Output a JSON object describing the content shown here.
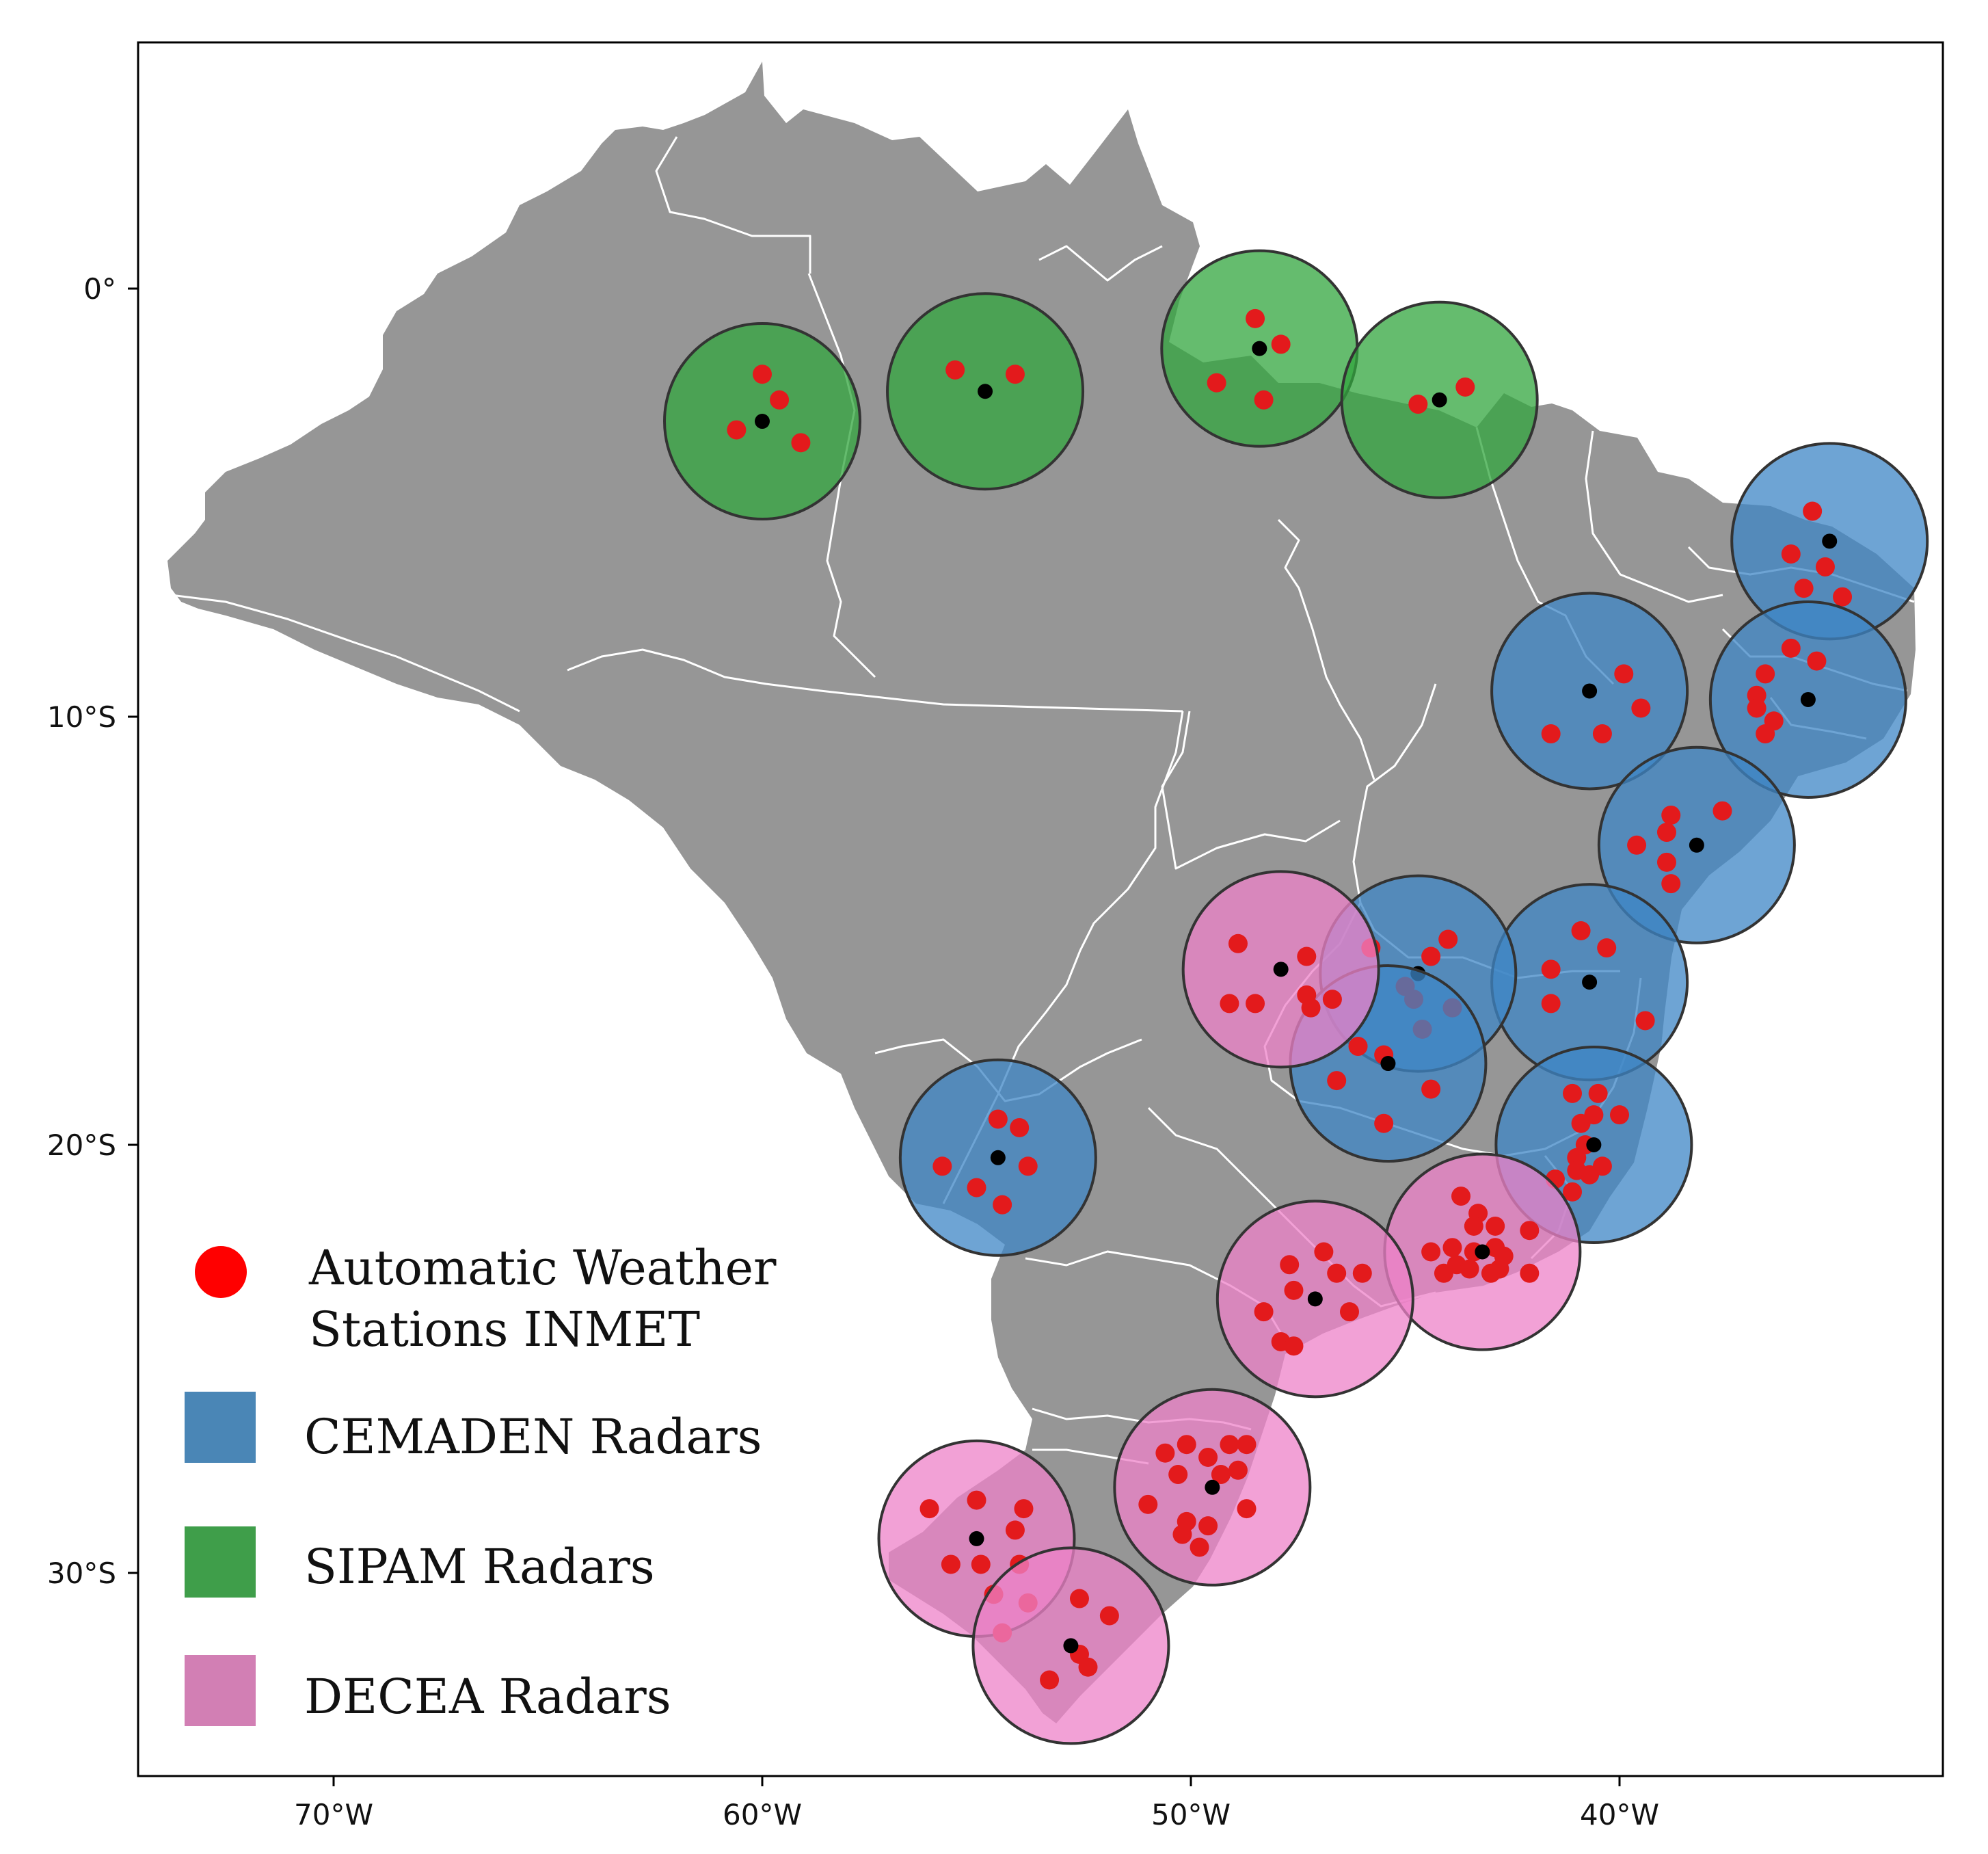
{
  "axes": {
    "x_ticks": [
      {
        "lon": -70,
        "label": "70°W"
      },
      {
        "lon": -60,
        "label": "60°W"
      },
      {
        "lon": -50,
        "label": "50°W"
      },
      {
        "lon": -40,
        "label": "40°W"
      }
    ],
    "y_ticks": [
      {
        "lat": 0,
        "label": "0°"
      },
      {
        "lat": -10,
        "label": "10°S"
      },
      {
        "lat": -20,
        "label": "20°S"
      },
      {
        "lat": -30,
        "label": "30°S"
      }
    ]
  },
  "legend": {
    "stations": {
      "line1": "Automatic Weather",
      "line2": "Stations  INMET",
      "color": "#ee1111"
    },
    "cemaden": {
      "label": "CEMADEN Radars",
      "color": "#4a86b6"
    },
    "sipam": {
      "label": "SIPAM Radars",
      "color": "#3f9e4a"
    },
    "decea": {
      "label": "DECEA Radars",
      "color": "#d27fb4"
    }
  },
  "colors": {
    "land": "#969696",
    "border": "#ffffff",
    "cemaden_fill": "#3d86c6",
    "sipam_fill": "#32a63e",
    "decea_fill": "#ee82c8",
    "radar_site": "#000000",
    "station": "#e31a1c"
  },
  "radars": [
    {
      "network": "SIPAM",
      "lon": -60.0,
      "lat": -3.1,
      "stations": [
        [
          -60.0,
          -2.0
        ],
        [
          -59.6,
          -2.6
        ],
        [
          -60.6,
          -3.3
        ],
        [
          -59.1,
          -3.6
        ]
      ]
    },
    {
      "network": "SIPAM",
      "lon": -54.8,
      "lat": -2.4,
      "stations": [
        [
          -55.5,
          -1.9
        ],
        [
          -54.1,
          -2.0
        ]
      ]
    },
    {
      "network": "SIPAM",
      "lon": -48.4,
      "lat": -1.4,
      "stations": [
        [
          -48.5,
          -0.7
        ],
        [
          -47.9,
          -1.3
        ],
        [
          -49.4,
          -2.2
        ],
        [
          -48.3,
          -2.6
        ]
      ]
    },
    {
      "network": "SIPAM",
      "lon": -44.2,
      "lat": -2.6,
      "stations": [
        [
          -44.7,
          -2.7
        ],
        [
          -43.6,
          -2.3
        ]
      ]
    },
    {
      "network": "CEMADEN",
      "lon": -35.1,
      "lat": -5.9,
      "stations": [
        [
          -35.5,
          -5.2
        ],
        [
          -36.0,
          -6.2
        ],
        [
          -35.2,
          -6.5
        ],
        [
          -35.7,
          -7.0
        ],
        [
          -34.8,
          -7.2
        ]
      ]
    },
    {
      "network": "CEMADEN",
      "lon": -40.7,
      "lat": -9.4,
      "stations": [
        [
          -39.9,
          -9.0
        ],
        [
          -39.5,
          -9.8
        ],
        [
          -41.6,
          -10.4
        ],
        [
          -40.4,
          -10.4
        ]
      ]
    },
    {
      "network": "CEMADEN",
      "lon": -35.6,
      "lat": -9.6,
      "stations": [
        [
          -36.0,
          -8.4
        ],
        [
          -35.4,
          -8.7
        ],
        [
          -36.6,
          -9.0
        ],
        [
          -36.8,
          -9.5
        ],
        [
          -36.8,
          -9.8
        ],
        [
          -36.4,
          -10.1
        ],
        [
          -36.6,
          -10.4
        ]
      ]
    },
    {
      "network": "CEMADEN",
      "lon": -38.2,
      "lat": -13.0,
      "stations": [
        [
          -37.6,
          -12.2
        ],
        [
          -38.8,
          -12.3
        ],
        [
          -38.9,
          -12.7
        ],
        [
          -39.6,
          -13.0
        ],
        [
          -38.9,
          -13.4
        ],
        [
          -38.8,
          -13.9
        ]
      ]
    },
    {
      "network": "CEMADEN",
      "lon": -40.7,
      "lat": -16.2,
      "stations": [
        [
          -40.9,
          -15.0
        ],
        [
          -40.3,
          -15.4
        ],
        [
          -41.6,
          -15.9
        ],
        [
          -41.6,
          -16.7
        ],
        [
          -39.4,
          -17.1
        ]
      ]
    },
    {
      "network": "CEMADEN",
      "lon": -44.7,
      "lat": -16.0,
      "stations": [
        [
          -44.0,
          -15.2
        ],
        [
          -44.4,
          -15.6
        ],
        [
          -45.8,
          -15.4
        ],
        [
          -45.0,
          -16.3
        ],
        [
          -44.8,
          -16.6
        ],
        [
          -43.9,
          -16.8
        ],
        [
          -44.6,
          -17.3
        ],
        [
          -46.7,
          -16.6
        ]
      ]
    },
    {
      "network": "CEMADEN",
      "lon": -45.4,
      "lat": -18.1,
      "stations": [
        [
          -46.1,
          -17.7
        ],
        [
          -45.5,
          -17.9
        ],
        [
          -46.6,
          -18.5
        ],
        [
          -44.4,
          -18.7
        ],
        [
          -45.5,
          -19.5
        ]
      ]
    },
    {
      "network": "CEMADEN",
      "lon": -40.6,
      "lat": -20.0,
      "stations": [
        [
          -41.1,
          -18.8
        ],
        [
          -40.5,
          -18.8
        ],
        [
          -40.9,
          -19.5
        ],
        [
          -40.6,
          -19.3
        ],
        [
          -40.0,
          -19.3
        ],
        [
          -40.8,
          -20.0
        ],
        [
          -41.0,
          -20.3
        ],
        [
          -41.0,
          -20.6
        ],
        [
          -40.7,
          -20.7
        ],
        [
          -40.4,
          -20.5
        ],
        [
          -41.5,
          -20.8
        ],
        [
          -41.1,
          -21.1
        ]
      ]
    },
    {
      "network": "CEMADEN",
      "lon": -54.5,
      "lat": -20.3,
      "stations": [
        [
          -54.5,
          -19.4
        ],
        [
          -54.0,
          -19.6
        ],
        [
          -55.8,
          -20.5
        ],
        [
          -53.8,
          -20.5
        ],
        [
          -55.0,
          -21.0
        ],
        [
          -54.4,
          -21.4
        ]
      ]
    },
    {
      "network": "DECEA",
      "lon": -47.9,
      "lat": -15.9,
      "stations": [
        [
          -48.9,
          -15.3
        ],
        [
          -47.3,
          -15.6
        ],
        [
          -49.1,
          -16.7
        ],
        [
          -48.5,
          -16.7
        ],
        [
          -47.3,
          -16.5
        ],
        [
          -47.2,
          -16.8
        ],
        [
          -46.7,
          -16.6
        ]
      ]
    },
    {
      "network": "DECEA",
      "lon": -43.2,
      "lat": -22.5,
      "stations": [
        [
          -43.7,
          -21.2
        ],
        [
          -43.3,
          -21.6
        ],
        [
          -43.4,
          -21.9
        ],
        [
          -42.9,
          -21.9
        ],
        [
          -42.1,
          -22.0
        ],
        [
          -43.9,
          -22.4
        ],
        [
          -43.4,
          -22.5
        ],
        [
          -42.9,
          -22.4
        ],
        [
          -43.8,
          -22.8
        ],
        [
          -43.5,
          -22.9
        ],
        [
          -43.0,
          -23.0
        ],
        [
          -42.7,
          -22.6
        ],
        [
          -42.8,
          -22.9
        ],
        [
          -42.1,
          -23.0
        ],
        [
          -44.4,
          -22.5
        ],
        [
          -44.1,
          -23.0
        ]
      ]
    },
    {
      "network": "DECEA",
      "lon": -47.1,
      "lat": -23.6,
      "stations": [
        [
          -46.9,
          -22.5
        ],
        [
          -47.7,
          -22.8
        ],
        [
          -46.6,
          -23.0
        ],
        [
          -46.0,
          -23.0
        ],
        [
          -47.6,
          -23.4
        ],
        [
          -48.3,
          -23.9
        ],
        [
          -46.3,
          -23.9
        ],
        [
          -47.9,
          -24.6
        ],
        [
          -47.6,
          -24.7
        ]
      ]
    },
    {
      "network": "DECEA",
      "lon": -49.5,
      "lat": -28.0,
      "stations": [
        [
          -50.6,
          -27.2
        ],
        [
          -50.1,
          -27.0
        ],
        [
          -49.1,
          -27.0
        ],
        [
          -48.7,
          -27.0
        ],
        [
          -49.6,
          -27.3
        ],
        [
          -50.3,
          -27.7
        ],
        [
          -49.3,
          -27.7
        ],
        [
          -48.9,
          -27.6
        ],
        [
          -51.0,
          -28.4
        ],
        [
          -50.1,
          -28.8
        ],
        [
          -49.6,
          -28.9
        ],
        [
          -48.7,
          -28.5
        ],
        [
          -50.2,
          -29.1
        ],
        [
          -49.8,
          -29.4
        ]
      ]
    },
    {
      "network": "DECEA",
      "lon": -55.0,
      "lat": -29.2,
      "stations": [
        [
          -55.0,
          -28.3
        ],
        [
          -53.9,
          -28.5
        ],
        [
          -56.1,
          -28.5
        ],
        [
          -54.1,
          -29.0
        ],
        [
          -55.6,
          -29.8
        ],
        [
          -54.9,
          -29.8
        ],
        [
          -54.0,
          -29.8
        ],
        [
          -54.6,
          -30.5
        ],
        [
          -53.8,
          -30.7
        ],
        [
          -54.4,
          -31.4
        ]
      ]
    },
    {
      "network": "DECEA",
      "lon": -52.8,
      "lat": -31.7,
      "stations": [
        [
          -52.6,
          -30.6
        ],
        [
          -51.9,
          -31.0
        ],
        [
          -52.6,
          -31.9
        ],
        [
          -52.4,
          -32.2
        ],
        [
          -53.3,
          -32.5
        ]
      ]
    }
  ]
}
